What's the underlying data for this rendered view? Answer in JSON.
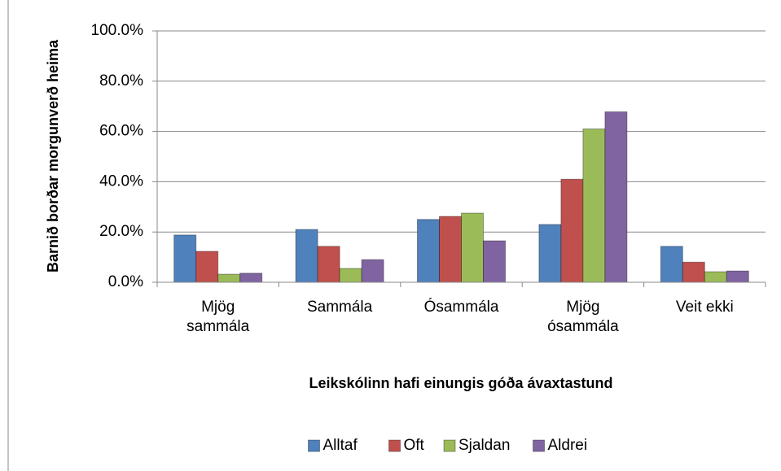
{
  "chart_data": {
    "type": "bar",
    "ylabel": "Barnið borðar morgunverð heima",
    "xlabel": "Leikskólinn hafi einungis góða ávaxtastund",
    "categories": [
      "Mjög sammála",
      "Sammála",
      "Ósammála",
      "Mjög ósammála",
      "Veit ekki"
    ],
    "series": [
      {
        "name": "Alltaf",
        "color": "#4f81bd",
        "values": [
          18.8,
          21.0,
          25.0,
          23.0,
          14.3
        ]
      },
      {
        "name": "Oft",
        "color": "#c0504d",
        "values": [
          12.3,
          14.3,
          26.2,
          41.0,
          8.0
        ]
      },
      {
        "name": "Sjaldan",
        "color": "#9bbb59",
        "values": [
          3.2,
          5.5,
          27.5,
          61.0,
          4.2
        ]
      },
      {
        "name": "Aldrei",
        "color": "#8064a2",
        "values": [
          3.6,
          9.0,
          16.5,
          67.8,
          4.5
        ]
      }
    ],
    "ylim": [
      0,
      100
    ],
    "yticks": [
      {
        "value": 0,
        "label": "0.0%"
      },
      {
        "value": 20,
        "label": "20.0%"
      },
      {
        "value": 40,
        "label": "40.0%"
      },
      {
        "value": 60,
        "label": "60.0%"
      },
      {
        "value": 80,
        "label": "80.0%"
      },
      {
        "value": 100,
        "label": "100.0%"
      }
    ],
    "grid": true,
    "legend": "bottom"
  }
}
